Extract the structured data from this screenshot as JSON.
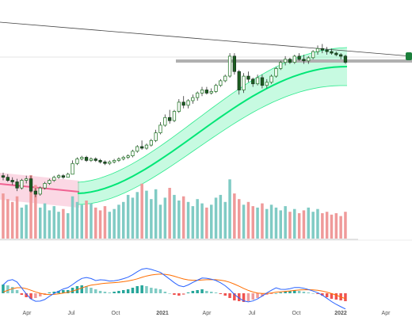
{
  "chart_data": {
    "type": "candlestick",
    "x_ticks": [
      "Apr",
      "Jul",
      "Oct",
      "2021",
      "Apr",
      "Jul",
      "Oct",
      "2022",
      "Apr"
    ],
    "candles": [
      [
        2.6,
        2.8,
        2.3,
        2.5
      ],
      [
        2.5,
        2.7,
        2.2,
        2.3
      ],
      [
        2.3,
        2.5,
        2.0,
        2.2
      ],
      [
        2.2,
        2.4,
        1.6,
        1.8
      ],
      [
        1.8,
        2.4,
        1.7,
        2.3
      ],
      [
        2.3,
        2.6,
        2.1,
        2.4
      ],
      [
        2.4,
        2.6,
        1.5,
        1.6
      ],
      [
        1.6,
        1.8,
        1.2,
        1.4
      ],
      [
        1.4,
        1.9,
        1.3,
        1.8
      ],
      [
        1.8,
        2.2,
        1.7,
        2.1
      ],
      [
        2.1,
        2.4,
        2.0,
        2.3
      ],
      [
        2.3,
        2.6,
        2.2,
        2.5
      ],
      [
        2.5,
        2.7,
        2.4,
        2.6
      ],
      [
        2.6,
        2.7,
        2.4,
        2.5
      ],
      [
        2.5,
        2.8,
        2.5,
        2.7
      ],
      [
        2.7,
        3.6,
        2.7,
        3.4
      ],
      [
        3.4,
        3.8,
        3.3,
        3.7
      ],
      [
        3.7,
        3.9,
        3.6,
        3.8
      ],
      [
        3.8,
        3.9,
        3.5,
        3.6
      ],
      [
        3.6,
        3.8,
        3.5,
        3.7
      ],
      [
        3.7,
        3.8,
        3.5,
        3.6
      ],
      [
        3.6,
        3.7,
        3.4,
        3.5
      ],
      [
        3.5,
        3.6,
        3.3,
        3.4
      ],
      [
        3.4,
        3.6,
        3.3,
        3.5
      ],
      [
        3.5,
        3.7,
        3.4,
        3.6
      ],
      [
        3.6,
        3.8,
        3.5,
        3.7
      ],
      [
        3.7,
        3.9,
        3.6,
        3.8
      ],
      [
        3.8,
        4.0,
        3.7,
        3.9
      ],
      [
        3.9,
        4.3,
        3.8,
        4.2
      ],
      [
        4.2,
        4.6,
        4.1,
        4.5
      ],
      [
        4.5,
        4.9,
        4.3,
        4.4
      ],
      [
        4.4,
        4.7,
        4.3,
        4.6
      ],
      [
        4.6,
        5.0,
        4.5,
        4.9
      ],
      [
        4.9,
        5.6,
        4.8,
        5.4
      ],
      [
        5.4,
        6.1,
        5.3,
        5.9
      ],
      [
        5.9,
        6.6,
        5.8,
        6.4
      ],
      [
        6.4,
        6.9,
        6.0,
        6.2
      ],
      [
        6.2,
        6.9,
        6.1,
        6.8
      ],
      [
        6.8,
        7.6,
        6.7,
        7.4
      ],
      [
        7.4,
        7.8,
        7.0,
        7.2
      ],
      [
        7.2,
        7.6,
        7.0,
        7.5
      ],
      [
        7.5,
        7.9,
        7.3,
        7.7
      ],
      [
        7.7,
        8.1,
        7.5,
        8.0
      ],
      [
        8.0,
        8.4,
        7.8,
        8.2
      ],
      [
        8.2,
        8.4,
        7.9,
        8.0
      ],
      [
        8.0,
        8.3,
        7.9,
        8.1
      ],
      [
        8.1,
        8.6,
        8.0,
        8.5
      ],
      [
        8.5,
        8.9,
        8.4,
        8.8
      ],
      [
        8.8,
        9.2,
        8.7,
        9.1
      ],
      [
        9.1,
        10.6,
        9.0,
        10.4
      ],
      [
        10.4,
        10.6,
        9.2,
        9.4
      ],
      [
        9.4,
        9.5,
        7.9,
        8.2
      ],
      [
        8.2,
        9.3,
        8.0,
        9.1
      ],
      [
        9.1,
        9.4,
        8.7,
        8.9
      ],
      [
        8.9,
        9.0,
        8.4,
        8.6
      ],
      [
        8.6,
        9.2,
        8.5,
        9.0
      ],
      [
        9.0,
        9.2,
        8.3,
        8.5
      ],
      [
        8.5,
        8.9,
        8.3,
        8.7
      ],
      [
        8.7,
        9.2,
        8.6,
        9.1
      ],
      [
        9.1,
        9.7,
        9.0,
        9.6
      ],
      [
        9.6,
        10.1,
        9.5,
        10.0
      ],
      [
        10.0,
        10.4,
        9.8,
        10.2
      ],
      [
        10.2,
        10.3,
        9.9,
        10.0
      ],
      [
        10.0,
        10.5,
        9.9,
        10.4
      ],
      [
        10.4,
        10.6,
        10.1,
        10.2
      ],
      [
        10.2,
        10.5,
        9.9,
        10.1
      ],
      [
        10.1,
        10.4,
        9.9,
        10.3
      ],
      [
        10.3,
        10.8,
        10.2,
        10.7
      ],
      [
        10.7,
        11.1,
        10.5,
        10.9
      ],
      [
        10.9,
        11.2,
        10.6,
        10.8
      ],
      [
        10.8,
        11.0,
        10.5,
        10.7
      ],
      [
        10.7,
        10.9,
        10.5,
        10.6
      ],
      [
        10.6,
        10.7,
        10.4,
        10.5
      ],
      [
        10.5,
        10.6,
        10.2,
        10.4
      ],
      [
        10.4,
        10.5,
        9.9,
        10.0
      ]
    ],
    "volume": [
      3.2,
      2.8,
      2.6,
      3.0,
      2.2,
      2.4,
      4.5,
      3.8,
      2.2,
      2.5,
      2.0,
      2.3,
      1.9,
      2.1,
      1.8,
      3.0,
      2.6,
      2.4,
      2.7,
      2.5,
      2.2,
      2.0,
      2.3,
      1.9,
      2.1,
      2.4,
      2.6,
      3.1,
      2.9,
      3.3,
      3.9,
      3.4,
      2.8,
      3.5,
      2.4,
      2.9,
      3.6,
      3.1,
      2.7,
      3.0,
      2.6,
      2.3,
      2.8,
      2.5,
      2.2,
      2.4,
      2.9,
      3.1,
      2.6,
      4.2,
      3.2,
      2.8,
      2.4,
      2.6,
      2.3,
      2.2,
      2.5,
      2.1,
      2.4,
      2.2,
      2.0,
      2.3,
      1.9,
      2.1,
      1.8,
      2.0,
      2.2,
      1.9,
      2.1,
      1.8,
      1.9,
      1.7,
      1.8,
      1.6,
      1.9
    ],
    "macd_hist": [
      0.55,
      0.5,
      0.4,
      0.2,
      -0.1,
      -0.25,
      -0.35,
      -0.3,
      -0.2,
      -0.1,
      0.05,
      0.1,
      0.15,
      0.2,
      0.2,
      0.35,
      0.45,
      0.5,
      0.45,
      0.35,
      0.25,
      0.15,
      0.1,
      0.05,
      0.1,
      0.15,
      0.2,
      0.25,
      0.35,
      0.45,
      0.5,
      0.45,
      0.35,
      0.3,
      0.25,
      0.1,
      0.0,
      -0.1,
      -0.15,
      -0.1,
      0.05,
      0.15,
      0.2,
      0.25,
      0.15,
      0.1,
      0.05,
      -0.05,
      -0.15,
      -0.3,
      -0.45,
      -0.5,
      -0.55,
      -0.5,
      -0.4,
      -0.3,
      -0.2,
      -0.1,
      -0.05,
      0.0,
      0.05,
      0.1,
      0.15,
      0.2,
      0.15,
      0.1,
      0.05,
      0.0,
      -0.05,
      -0.15,
      -0.25,
      -0.35,
      -0.4,
      -0.45,
      -0.5
    ],
    "y_range": [
      0,
      12
    ]
  },
  "colors": {
    "up": "#26a69a",
    "down": "#ef5350",
    "candle_up": "#1b5e20",
    "vol_up": "#80cbc4",
    "vol_down": "#ef9a9a",
    "band_green": "#00e676",
    "band_red": "#f06292",
    "macd": "#2962ff",
    "signal": "#ff6d00",
    "trend": "#444444",
    "support": "#b0b0b0",
    "badge": "#1b7f3b"
  }
}
